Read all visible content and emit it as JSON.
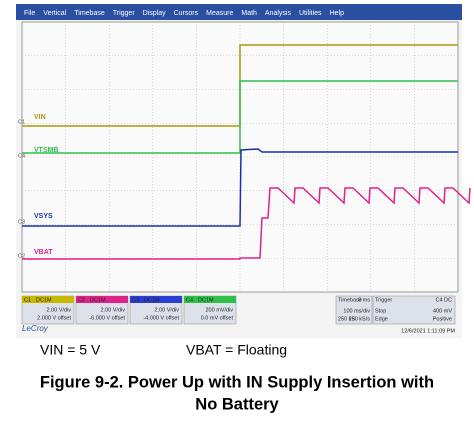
{
  "menu": [
    "File",
    "Vertical",
    "Timebase",
    "Trigger",
    "Display",
    "Cursors",
    "Measure",
    "Math",
    "Analysis",
    "Utilities",
    "Help"
  ],
  "traces": [
    {
      "marker": "C1",
      "label": "VIN"
    },
    {
      "marker": "C4",
      "label": "VTSMB"
    },
    {
      "marker": "C3",
      "label": "VSYS"
    },
    {
      "marker": "C2",
      "label": "VBAT"
    }
  ],
  "channels": [
    {
      "name": "C1",
      "coupling": "DC1M",
      "scale": "2.00 V/div",
      "offset": "2.000 V offset"
    },
    {
      "name": "C2",
      "coupling": "DC1M",
      "scale": "2.00 V/div",
      "offset": "-6.000 V offset"
    },
    {
      "name": "C3",
      "coupling": "DC1M",
      "scale": "2.00 V/div",
      "offset": "-4.000 V offset"
    },
    {
      "name": "C4",
      "coupling": "DC1M",
      "scale": "200 mV/div",
      "offset": "0.0 mV offset"
    }
  ],
  "timebase": {
    "title": "Timebase",
    "delay": "0 ms",
    "div": "100 ms/div",
    "samples": "250 kS",
    "rate": "250 kS/s"
  },
  "trigger": {
    "title": "Trigger",
    "source": "C4 DC",
    "mode": "Stop",
    "level": "400 mV",
    "type": "Edge",
    "slope": "Positive"
  },
  "brand": "LeCroy",
  "timestamp": "12/6/2021 1:11:09 PM",
  "conditions": [
    "VIN = 5 V",
    "VBAT = Floating"
  ],
  "caption": [
    "Figure 9-2. Power Up with IN Supply Insertion with",
    "No Battery"
  ]
}
